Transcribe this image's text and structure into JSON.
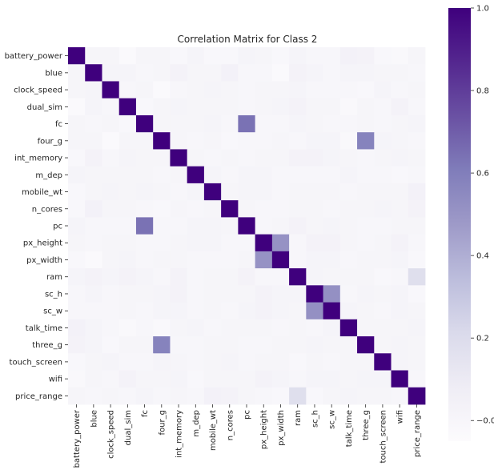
{
  "chart_data": {
    "type": "heatmap",
    "title": "Correlation Matrix for Class 2",
    "xlabel": "",
    "ylabel": "",
    "labels": [
      "battery_power",
      "blue",
      "clock_speed",
      "dual_sim",
      "fc",
      "four_g",
      "int_memory",
      "m_dep",
      "mobile_wt",
      "n_cores",
      "pc",
      "px_height",
      "px_width",
      "ram",
      "sc_h",
      "sc_w",
      "talk_time",
      "three_g",
      "touch_screen",
      "wifi",
      "price_range"
    ],
    "values": [
      [
        1.0,
        0.01,
        0.01,
        -0.03,
        0.01,
        0.01,
        -0.01,
        0.02,
        -0.01,
        -0.01,
        0.02,
        0.01,
        -0.01,
        0.02,
        0.0,
        0.0,
        0.04,
        0.03,
        -0.01,
        -0.02,
        0.01
      ],
      [
        0.01,
        1.0,
        0.02,
        0.02,
        0.0,
        0.01,
        0.03,
        0.01,
        0.01,
        0.04,
        0.0,
        0.0,
        -0.03,
        0.03,
        0.02,
        0.0,
        0.02,
        0.02,
        0.01,
        0.01,
        0.0
      ],
      [
        0.01,
        0.02,
        1.0,
        0.0,
        0.01,
        -0.03,
        0.0,
        0.01,
        0.02,
        0.01,
        0.0,
        0.01,
        0.01,
        0.02,
        0.0,
        0.0,
        0.0,
        -0.01,
        0.02,
        0.0,
        0.01
      ],
      [
        -0.03,
        0.02,
        0.0,
        1.0,
        -0.01,
        0.01,
        0.02,
        0.01,
        0.01,
        0.01,
        0.0,
        0.01,
        0.02,
        0.03,
        0.01,
        0.01,
        -0.02,
        0.01,
        0.0,
        0.03,
        0.0
      ],
      [
        0.01,
        0.0,
        0.01,
        -0.01,
        1.0,
        0.01,
        0.01,
        0.01,
        0.02,
        0.0,
        0.64,
        0.0,
        0.0,
        0.02,
        0.01,
        0.0,
        0.0,
        0.01,
        0.0,
        0.01,
        0.02
      ],
      [
        0.01,
        0.01,
        -0.03,
        0.01,
        0.01,
        1.0,
        0.01,
        0.0,
        0.01,
        -0.01,
        0.0,
        0.0,
        0.01,
        0.0,
        0.02,
        0.02,
        -0.02,
        0.58,
        0.02,
        0.01,
        0.0
      ],
      [
        -0.01,
        0.03,
        0.0,
        0.02,
        0.01,
        0.01,
        1.0,
        0.01,
        0.0,
        0.01,
        0.0,
        0.01,
        0.01,
        0.03,
        0.03,
        0.02,
        0.01,
        0.0,
        0.01,
        0.02,
        0.01
      ],
      [
        0.02,
        0.01,
        0.01,
        0.01,
        0.01,
        0.0,
        0.01,
        1.0,
        0.02,
        0.0,
        0.02,
        0.02,
        0.0,
        0.0,
        0.0,
        0.0,
        0.02,
        0.0,
        0.0,
        -0.01,
        0.0
      ],
      [
        -0.01,
        0.01,
        0.02,
        0.01,
        0.02,
        0.01,
        0.0,
        0.02,
        1.0,
        0.01,
        0.02,
        0.02,
        0.0,
        0.01,
        0.01,
        0.01,
        0.0,
        0.01,
        0.01,
        0.01,
        0.04
      ],
      [
        -0.01,
        0.04,
        0.01,
        0.01,
        0.0,
        -0.01,
        0.01,
        0.0,
        0.01,
        1.0,
        0.01,
        0.0,
        0.0,
        0.01,
        0.01,
        0.0,
        0.01,
        0.01,
        0.02,
        0.01,
        0.03
      ],
      [
        0.02,
        0.0,
        0.0,
        0.0,
        0.64,
        0.0,
        0.0,
        0.02,
        0.02,
        0.01,
        1.0,
        0.0,
        0.01,
        0.03,
        0.01,
        0.02,
        0.01,
        0.0,
        0.0,
        0.01,
        0.01
      ],
      [
        0.01,
        0.0,
        0.01,
        0.01,
        0.0,
        0.0,
        0.01,
        0.02,
        0.02,
        0.0,
        0.0,
        1.0,
        0.51,
        0.0,
        0.03,
        0.03,
        0.01,
        0.0,
        0.01,
        0.03,
        0.0
      ],
      [
        -0.01,
        -0.03,
        0.01,
        0.02,
        0.0,
        0.01,
        0.01,
        0.0,
        0.0,
        0.0,
        0.01,
        0.51,
        1.0,
        0.0,
        0.02,
        0.02,
        0.0,
        0.01,
        0.01,
        0.02,
        -0.01
      ],
      [
        0.02,
        0.03,
        0.02,
        0.03,
        0.02,
        0.0,
        0.03,
        0.0,
        0.01,
        0.01,
        0.03,
        0.0,
        0.0,
        1.0,
        0.02,
        0.01,
        0.01,
        0.01,
        -0.01,
        0.0,
        0.18
      ],
      [
        0.0,
        0.02,
        0.0,
        0.01,
        0.01,
        0.02,
        0.03,
        0.0,
        0.01,
        0.01,
        0.01,
        0.03,
        0.02,
        0.02,
        1.0,
        0.52,
        0.0,
        0.02,
        0.01,
        0.02,
        -0.01
      ],
      [
        0.0,
        0.0,
        0.0,
        0.01,
        0.0,
        0.02,
        0.02,
        0.0,
        0.01,
        0.0,
        0.02,
        0.03,
        0.02,
        0.01,
        0.52,
        1.0,
        0.02,
        0.01,
        0.0,
        0.02,
        0.01
      ],
      [
        0.04,
        0.02,
        0.0,
        -0.02,
        0.0,
        -0.02,
        0.01,
        0.02,
        0.0,
        0.01,
        0.01,
        0.01,
        0.0,
        0.01,
        0.0,
        0.02,
        1.0,
        0.01,
        0.01,
        0.01,
        0.02
      ],
      [
        0.03,
        0.02,
        -0.01,
        0.01,
        0.01,
        0.58,
        0.0,
        0.0,
        0.01,
        0.01,
        0.0,
        0.0,
        0.01,
        0.01,
        0.02,
        0.01,
        0.01,
        1.0,
        0.01,
        0.02,
        0.01
      ],
      [
        -0.01,
        0.01,
        0.02,
        0.0,
        0.0,
        0.02,
        0.01,
        0.0,
        0.01,
        0.02,
        0.0,
        0.01,
        0.01,
        -0.01,
        0.01,
        0.0,
        0.01,
        0.01,
        1.0,
        0.02,
        0.01
      ],
      [
        -0.02,
        0.01,
        0.0,
        0.03,
        0.01,
        0.01,
        0.02,
        -0.01,
        0.01,
        0.01,
        0.01,
        0.03,
        0.02,
        0.0,
        0.02,
        0.02,
        0.01,
        0.02,
        0.02,
        1.0,
        0.0
      ],
      [
        0.01,
        0.0,
        0.01,
        0.0,
        0.02,
        0.0,
        0.01,
        0.0,
        0.04,
        0.03,
        0.01,
        0.0,
        -0.01,
        0.18,
        -0.01,
        0.01,
        0.02,
        0.01,
        0.01,
        0.0,
        1.0
      ]
    ],
    "colorbar": {
      "cmap": "Purples",
      "vmin": -0.05,
      "vmax": 1.0,
      "ticks": [
        0.0,
        0.2,
        0.4,
        0.6,
        0.8,
        1.0
      ],
      "tick_labels": [
        "−0.0",
        "0.2",
        "0.4",
        "0.6",
        "0.8",
        "1.0"
      ],
      "position": "right"
    },
    "grid": false
  }
}
